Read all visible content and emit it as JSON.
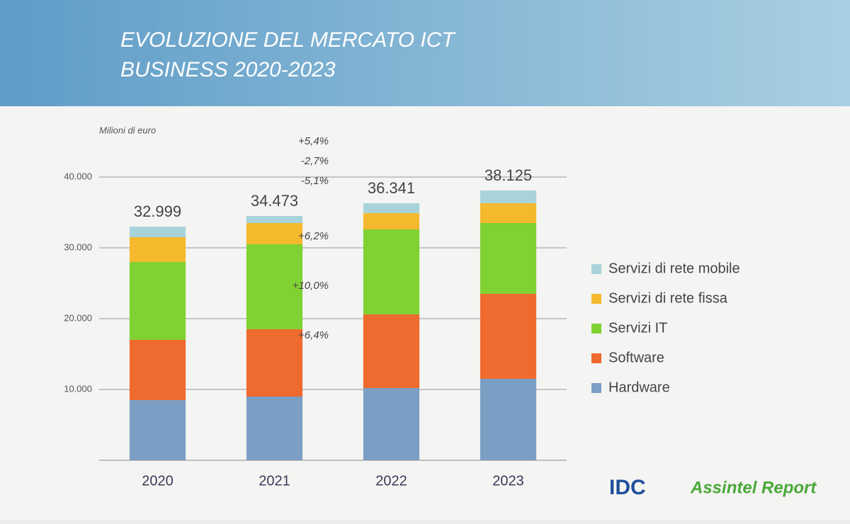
{
  "chart_data": {
    "type": "stacked_bar",
    "title_lines": [
      "EVOLUZIONE DEL MERCATO ICT",
      "BUSINESS 2020-2023"
    ],
    "y_axis_label": "Milioni di euro",
    "categories": [
      "2020",
      "2021",
      "2022",
      "2023"
    ],
    "series": [
      {
        "name": "Hardware",
        "color": "#7b9fc4",
        "values": [
          8500,
          9000,
          10200,
          11500
        ]
      },
      {
        "name": "Software",
        "color": "#ee6a2e",
        "values": [
          8500,
          9500,
          10400,
          12000
        ]
      },
      {
        "name": "Servizi IT",
        "color": "#80d132",
        "values": [
          11000,
          12000,
          12000,
          10000
        ]
      },
      {
        "name": "Servizi di rete fissa",
        "color": "#f5b92e",
        "values": [
          3500,
          3000,
          2300,
          2800
        ]
      },
      {
        "name": "Servizi di rete mobile",
        "color": "#a9d3db",
        "values": [
          1500,
          1000,
          1400,
          1800
        ]
      }
    ],
    "totals": {
      "values": [
        32999,
        34473,
        36341,
        38125
      ],
      "value_labels": [
        "32.999",
        "34.473",
        "36.341",
        "38.125"
      ]
    },
    "growth_labels": [
      "+5,4%",
      "-2,7%",
      "-5,1%",
      "+6,2%",
      "+10,0%",
      "+6,4%"
    ],
    "ylim": [
      0,
      45000
    ],
    "yticks": [
      {
        "value": 10000,
        "label": "10.000"
      },
      {
        "value": 20000,
        "label": "20.000"
      },
      {
        "value": 30000,
        "label": "30.000"
      },
      {
        "value": 40000,
        "label": "40.000"
      }
    ],
    "grid": true,
    "legend": "right",
    "logos": [
      "IDC",
      "Assintel Report"
    ]
  }
}
